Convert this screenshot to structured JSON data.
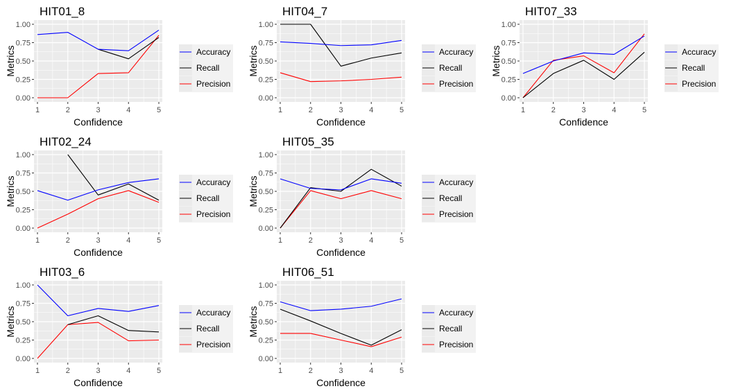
{
  "legend_labels": [
    "Accuracy",
    "Recall",
    "Precision"
  ],
  "colors": {
    "Accuracy": "#0000ff",
    "Recall": "#000000",
    "Precision": "#ff0000",
    "panel_bg": "#ebebeb",
    "grid": "#ffffff",
    "axis_text": "#4d4d4d"
  },
  "chart_data": [
    {
      "type": "line",
      "title": "HIT01_8",
      "xlabel": "Confidence",
      "ylabel": "Metrics",
      "x": [
        1,
        2,
        3,
        4,
        5
      ],
      "ylim": [
        0,
        1
      ],
      "yticks": [
        "0.00",
        "0.25",
        "0.50",
        "0.75",
        "1.00"
      ],
      "xticks": [
        "1",
        "2",
        "3",
        "4",
        "5"
      ],
      "series": [
        {
          "name": "Accuracy",
          "values": [
            0.86,
            0.89,
            0.66,
            0.64,
            0.92
          ]
        },
        {
          "name": "Recall",
          "values": [
            null,
            null,
            0.66,
            0.53,
            0.82
          ]
        },
        {
          "name": "Precision",
          "values": [
            0.0,
            0.0,
            0.33,
            0.34,
            0.85
          ]
        }
      ]
    },
    {
      "type": "line",
      "title": "HIT04_7",
      "xlabel": "Confidence",
      "ylabel": "Metrics",
      "x": [
        1,
        2,
        3,
        4,
        5
      ],
      "ylim": [
        0,
        1
      ],
      "yticks": [
        "0.00",
        "0.25",
        "0.50",
        "0.75",
        "1.00"
      ],
      "xticks": [
        "1",
        "2",
        "3",
        "4",
        "5"
      ],
      "series": [
        {
          "name": "Accuracy",
          "values": [
            0.76,
            0.74,
            0.71,
            0.72,
            0.78
          ]
        },
        {
          "name": "Recall",
          "values": [
            1.0,
            1.0,
            0.43,
            0.54,
            0.61
          ]
        },
        {
          "name": "Precision",
          "values": [
            0.34,
            0.22,
            0.23,
            0.25,
            0.28
          ]
        }
      ]
    },
    {
      "type": "line",
      "title": "HIT07_33",
      "xlabel": "Confidence",
      "ylabel": "Metrics",
      "x": [
        1,
        2,
        3,
        4,
        5
      ],
      "ylim": [
        0,
        1
      ],
      "yticks": [
        "0.00",
        "0.25",
        "0.50",
        "0.75",
        "1.00"
      ],
      "xticks": [
        "1",
        "2",
        "3",
        "4",
        "5"
      ],
      "series": [
        {
          "name": "Accuracy",
          "values": [
            0.33,
            0.5,
            0.61,
            0.59,
            0.84
          ]
        },
        {
          "name": "Recall",
          "values": [
            0.0,
            0.33,
            0.51,
            0.25,
            0.62
          ]
        },
        {
          "name": "Precision",
          "values": [
            0.0,
            0.51,
            0.57,
            0.34,
            0.87
          ]
        }
      ]
    },
    {
      "type": "line",
      "title": "HIT02_24",
      "xlabel": "Confidence",
      "ylabel": "Metrics",
      "x": [
        1,
        2,
        3,
        4,
        5
      ],
      "ylim": [
        0,
        1
      ],
      "yticks": [
        "0.00",
        "0.25",
        "0.50",
        "0.75",
        "1.00"
      ],
      "xticks": [
        "1",
        "2",
        "3",
        "4",
        "5"
      ],
      "series": [
        {
          "name": "Accuracy",
          "values": [
            0.51,
            0.38,
            0.52,
            0.62,
            0.67
          ]
        },
        {
          "name": "Recall",
          "values": [
            null,
            1.0,
            0.45,
            0.6,
            0.38
          ]
        },
        {
          "name": "Precision",
          "values": [
            0.0,
            0.19,
            0.4,
            0.51,
            0.35
          ]
        }
      ]
    },
    {
      "type": "line",
      "title": "HIT05_35",
      "xlabel": "Confidence",
      "ylabel": "Metrics",
      "x": [
        1,
        2,
        3,
        4,
        5
      ],
      "ylim": [
        0,
        1
      ],
      "yticks": [
        "0.00",
        "0.25",
        "0.50",
        "0.75",
        "1.00"
      ],
      "xticks": [
        "1",
        "2",
        "3",
        "4",
        "5"
      ],
      "series": [
        {
          "name": "Accuracy",
          "values": [
            0.67,
            0.54,
            0.52,
            0.67,
            0.61
          ]
        },
        {
          "name": "Recall",
          "values": [
            0.0,
            0.55,
            0.5,
            0.8,
            0.57
          ]
        },
        {
          "name": "Precision",
          "values": [
            0.0,
            0.51,
            0.4,
            0.51,
            0.4
          ]
        }
      ]
    },
    {
      "type": "line",
      "title": "HIT03_6",
      "xlabel": "Confidence",
      "ylabel": "Metrics",
      "x": [
        1,
        2,
        3,
        4,
        5
      ],
      "ylim": [
        0,
        1
      ],
      "yticks": [
        "0.00",
        "0.25",
        "0.50",
        "0.75",
        "1.00"
      ],
      "xticks": [
        "1",
        "2",
        "3",
        "4",
        "5"
      ],
      "series": [
        {
          "name": "Accuracy",
          "values": [
            1.0,
            0.58,
            0.68,
            0.64,
            0.72
          ]
        },
        {
          "name": "Recall",
          "values": [
            null,
            0.46,
            0.58,
            0.38,
            0.36
          ]
        },
        {
          "name": "Precision",
          "values": [
            0.0,
            0.46,
            0.49,
            0.24,
            0.25
          ]
        }
      ]
    },
    {
      "type": "line",
      "title": "HIT06_51",
      "xlabel": "Confidence",
      "ylabel": "Metrics",
      "x": [
        1,
        2,
        3,
        4,
        5
      ],
      "ylim": [
        0,
        1
      ],
      "yticks": [
        "0.00",
        "0.25",
        "0.50",
        "0.75",
        "1.00"
      ],
      "xticks": [
        "1",
        "2",
        "3",
        "4",
        "5"
      ],
      "series": [
        {
          "name": "Accuracy",
          "values": [
            0.77,
            0.65,
            0.67,
            0.71,
            0.81
          ]
        },
        {
          "name": "Recall",
          "values": [
            0.67,
            0.51,
            0.34,
            0.18,
            0.39
          ]
        },
        {
          "name": "Precision",
          "values": [
            0.34,
            0.34,
            0.25,
            0.16,
            0.29
          ]
        }
      ]
    }
  ]
}
